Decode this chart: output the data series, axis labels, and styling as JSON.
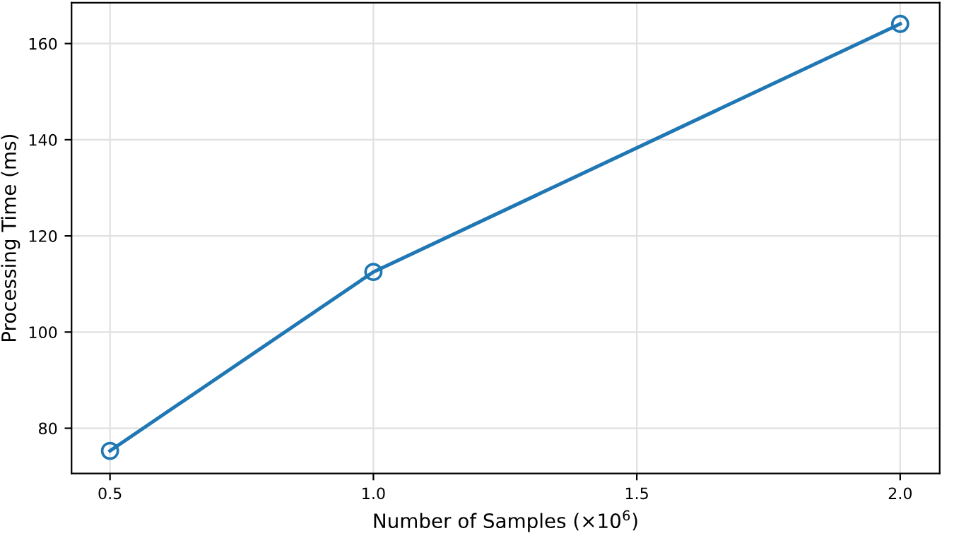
{
  "chart_data": {
    "type": "line",
    "xlabel": "Number of Samples (×10$^{6}$)",
    "ylabel": "Processing Time (ms)",
    "x": [
      0.5,
      1.0,
      2.0
    ],
    "series": [
      {
        "color": "#1f77b4",
        "values": [
          75.3,
          112.5,
          164.1
        ]
      }
    ],
    "xlim": [
      0.427,
      2.075
    ],
    "xticks": [
      0.5,
      {
        "value": 1,
        "label": "1.0"
      },
      1.5,
      {
        "value": 2,
        "label": "2.0"
      }
    ],
    "ylim": [
      70.6,
      168.5
    ],
    "yticks": [
      80,
      100,
      120,
      140,
      160
    ],
    "grid": true,
    "marker": "circle",
    "line_style": "solid"
  }
}
